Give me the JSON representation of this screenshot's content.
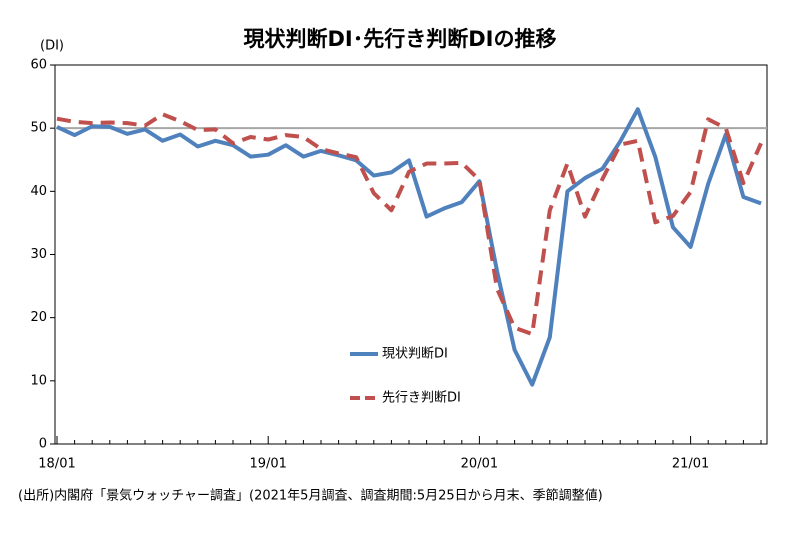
{
  "chart_data": {
    "type": "line",
    "title": "現状判断DI･先行き判断DIの推移",
    "y_label": "(DI)",
    "note": "(出所)内閣府「景気ウォッチャー調査」(2021年5月調査、調査期間:5月25日から月末、季節調整値)",
    "categories": [
      "18/01",
      null,
      null,
      null,
      null,
      null,
      null,
      null,
      null,
      null,
      null,
      null,
      "19/01",
      null,
      null,
      null,
      null,
      null,
      null,
      null,
      null,
      null,
      null,
      null,
      "20/01",
      null,
      null,
      null,
      null,
      null,
      null,
      null,
      null,
      null,
      null,
      null,
      "21/01",
      null,
      null,
      null,
      null
    ],
    "series": [
      {
        "name": "現状判断DI",
        "color": "#4f81bd",
        "dashed": false,
        "values": [
          50.2,
          48.9,
          50.3,
          50.2,
          49.1,
          49.8,
          48.0,
          49.0,
          47.1,
          48.0,
          47.3,
          45.5,
          45.8,
          47.3,
          45.5,
          46.4,
          45.7,
          44.9,
          42.5,
          43.0,
          44.9,
          36.0,
          37.3,
          38.3,
          41.6,
          27.4,
          14.9,
          9.4,
          16.9,
          40.0,
          42.1,
          43.6,
          47.9,
          53.0,
          45.4,
          34.3,
          31.2,
          41.2,
          49.0,
          39.1,
          38.1
        ]
      },
      {
        "name": "先行き判断DI",
        "color": "#c0504d",
        "dashed": true,
        "values": [
          51.5,
          51.0,
          50.8,
          50.9,
          50.8,
          50.4,
          52.2,
          51.1,
          49.7,
          49.8,
          47.6,
          48.6,
          48.2,
          48.9,
          48.6,
          46.7,
          46.0,
          45.4,
          39.7,
          37.0,
          43.1,
          44.4,
          44.4,
          44.5,
          41.8,
          24.6,
          18.4,
          17.4,
          37.0,
          44.4,
          36.0,
          42.0,
          47.4,
          48.0,
          35.1,
          36.1,
          39.9,
          51.4,
          50.0,
          41.3,
          47.6
        ]
      }
    ],
    "reference_line": 50,
    "reference_color": "#a6a6a6",
    "ylim": [
      0,
      60
    ],
    "yticks": [
      0,
      10,
      20,
      30,
      40,
      50,
      60
    ],
    "grid": false
  }
}
